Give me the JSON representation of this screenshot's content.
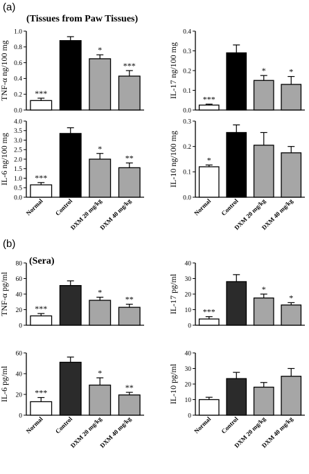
{
  "figure": {
    "panel_a_label": "(a)",
    "panel_a_title": "(Tissues from Paw Tissues)",
    "panel_b_label": "(b)",
    "panel_b_title": "(Sera)"
  },
  "colors": {
    "normal": "#ffffff",
    "control_a": "#000000",
    "control_b": "#2b2b2b",
    "treated": "#a6a6a6",
    "stroke": "#000000"
  },
  "chart_data": [
    {
      "type": "bar",
      "panel": "a",
      "ylabel": "TNF-α ng/100 mg",
      "categories": [
        "Normal",
        "Control",
        "DXM 20 mg/kg",
        "DXM 40 mg/kg"
      ],
      "values": [
        0.12,
        0.88,
        0.65,
        0.43
      ],
      "errors": [
        0.03,
        0.05,
        0.05,
        0.07
      ],
      "significance": [
        "***",
        "",
        "*",
        "***"
      ],
      "ylim": [
        0,
        1.0
      ],
      "yticks": [
        "0.0",
        "0.2",
        "0.4",
        "0.6",
        "0.8",
        "1.0"
      ],
      "show_categories": false
    },
    {
      "type": "bar",
      "panel": "a",
      "ylabel": "IL-17 ng/100 mg",
      "categories": [
        "Normal",
        "Control",
        "DXM 20 mg/kg",
        "DXM 40 mg/kg"
      ],
      "values": [
        0.025,
        0.29,
        0.15,
        0.13
      ],
      "errors": [
        0.005,
        0.04,
        0.025,
        0.04
      ],
      "significance": [
        "***",
        "",
        "*",
        "*"
      ],
      "ylim": [
        0,
        0.4
      ],
      "yticks": [
        "0.0",
        "0.1",
        "0.2",
        "0.3",
        "0.4"
      ],
      "show_categories": false
    },
    {
      "type": "bar",
      "panel": "a",
      "ylabel": "IL-6 ng/100 mg",
      "categories": [
        "Normal",
        "Control",
        "DXM 20 mg/kg",
        "DXM 40 mg/kg"
      ],
      "values": [
        0.65,
        3.35,
        2.0,
        1.55
      ],
      "errors": [
        0.12,
        0.3,
        0.3,
        0.25
      ],
      "significance": [
        "***",
        "",
        "*",
        "**"
      ],
      "ylim": [
        0,
        4.0
      ],
      "yticks": [
        "0.0",
        "0.5",
        "1.0",
        "1.5",
        "2.0",
        "2.5",
        "3.0",
        "3.5",
        "4.0"
      ],
      "show_categories": true
    },
    {
      "type": "bar",
      "panel": "a",
      "ylabel": "IL-10 ng/100 mg",
      "categories": [
        "Normal",
        "Control",
        "DXM 20 mg/kg",
        "DXM 40 mg/kg"
      ],
      "values": [
        0.12,
        0.255,
        0.205,
        0.175
      ],
      "errors": [
        0.007,
        0.03,
        0.05,
        0.025
      ],
      "significance": [
        "*",
        "",
        "",
        ""
      ],
      "ylim": [
        0,
        0.3
      ],
      "yticks": [
        "0.0",
        "0.1",
        "0.2",
        "0.3"
      ],
      "show_categories": true
    },
    {
      "type": "bar",
      "panel": "b",
      "ylabel": "TNF-α pg/ml",
      "categories": [
        "Normal",
        "Control",
        "DXM 20 mg/kg",
        "DXM 40 mg/kg"
      ],
      "values": [
        12,
        51,
        32,
        23
      ],
      "errors": [
        3,
        6,
        4,
        4
      ],
      "significance": [
        "***",
        "",
        "*",
        "**"
      ],
      "ylim": [
        0,
        80
      ],
      "yticks": [
        "0",
        "20",
        "40",
        "60",
        "80"
      ],
      "show_categories": false
    },
    {
      "type": "bar",
      "panel": "b",
      "ylabel": "IL-17 pg/ml",
      "categories": [
        "Normal",
        "Control",
        "DXM 20 mg/kg",
        "DXM 40 mg/kg"
      ],
      "values": [
        4,
        28,
        17.5,
        13
      ],
      "errors": [
        1.5,
        4.5,
        2.5,
        1.5
      ],
      "significance": [
        "***",
        "",
        "*",
        "*"
      ],
      "ylim": [
        0,
        40
      ],
      "yticks": [
        "0",
        "10",
        "20",
        "30",
        "40"
      ],
      "show_categories": false
    },
    {
      "type": "bar",
      "panel": "b",
      "ylabel": "IL-6 pg/ml",
      "categories": [
        "Normal",
        "Control",
        "DXM 20 mg/kg",
        "DXM 40 mg/kg"
      ],
      "values": [
        13,
        51,
        29,
        19.5
      ],
      "errors": [
        4,
        5,
        7,
        2.5
      ],
      "significance": [
        "***",
        "",
        "*",
        "**"
      ],
      "ylim": [
        0,
        60
      ],
      "yticks": [
        "0",
        "20",
        "40",
        "60"
      ],
      "show_categories": true
    },
    {
      "type": "bar",
      "panel": "b",
      "ylabel": "IL-10 pg/ml",
      "categories": [
        "Normal",
        "Control",
        "DXM 20 mg/kg",
        "DXM 40 mg/kg"
      ],
      "values": [
        10,
        23.5,
        18,
        25
      ],
      "errors": [
        1.5,
        4,
        3,
        5
      ],
      "significance": [
        "",
        "",
        "",
        ""
      ],
      "ylim": [
        0,
        40
      ],
      "yticks": [
        "0",
        "10",
        "20",
        "30",
        "40"
      ],
      "show_categories": true
    }
  ]
}
